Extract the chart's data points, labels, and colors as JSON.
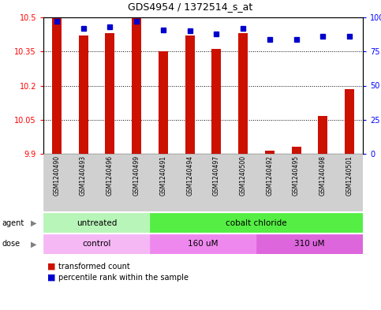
{
  "title": "GDS4954 / 1372514_s_at",
  "samples": [
    "GSM1240490",
    "GSM1240493",
    "GSM1240496",
    "GSM1240499",
    "GSM1240491",
    "GSM1240494",
    "GSM1240497",
    "GSM1240500",
    "GSM1240492",
    "GSM1240495",
    "GSM1240498",
    "GSM1240501"
  ],
  "red_values": [
    10.5,
    10.42,
    10.43,
    10.5,
    10.35,
    10.42,
    10.36,
    10.43,
    9.915,
    9.93,
    10.065,
    10.185
  ],
  "blue_values": [
    97,
    92,
    93,
    97,
    91,
    90,
    88,
    92,
    84,
    84,
    86,
    86
  ],
  "y_min": 9.9,
  "y_max": 10.5,
  "y_ticks": [
    9.9,
    10.05,
    10.2,
    10.35,
    10.5
  ],
  "y_tick_labels": [
    "9.9",
    "10.05",
    "10.2",
    "10.35",
    "10.5"
  ],
  "y2_ticks": [
    0,
    25,
    50,
    75,
    100
  ],
  "y2_tick_labels": [
    "0",
    "25",
    "50",
    "75",
    "100%"
  ],
  "agent_labels": [
    "untreated",
    "cobalt chloride"
  ],
  "agent_span_counts": [
    4,
    8
  ],
  "agent_color_light": "#b8f5b8",
  "agent_color_dark": "#55ee44",
  "dose_labels": [
    "control",
    "160 uM",
    "310 uM"
  ],
  "dose_span_counts": [
    4,
    4,
    4
  ],
  "dose_color_light": "#f5b8f5",
  "dose_color_mid": "#ee88ee",
  "dose_color_dark": "#dd66dd",
  "bar_color": "#cc1100",
  "dot_color": "#0000cc",
  "plot_bg": "#ffffff",
  "grid_color": "#000000",
  "bar_width": 0.35,
  "legend_red": "transformed count",
  "legend_blue": "percentile rank within the sample",
  "sample_box_color": "#d0d0d0"
}
